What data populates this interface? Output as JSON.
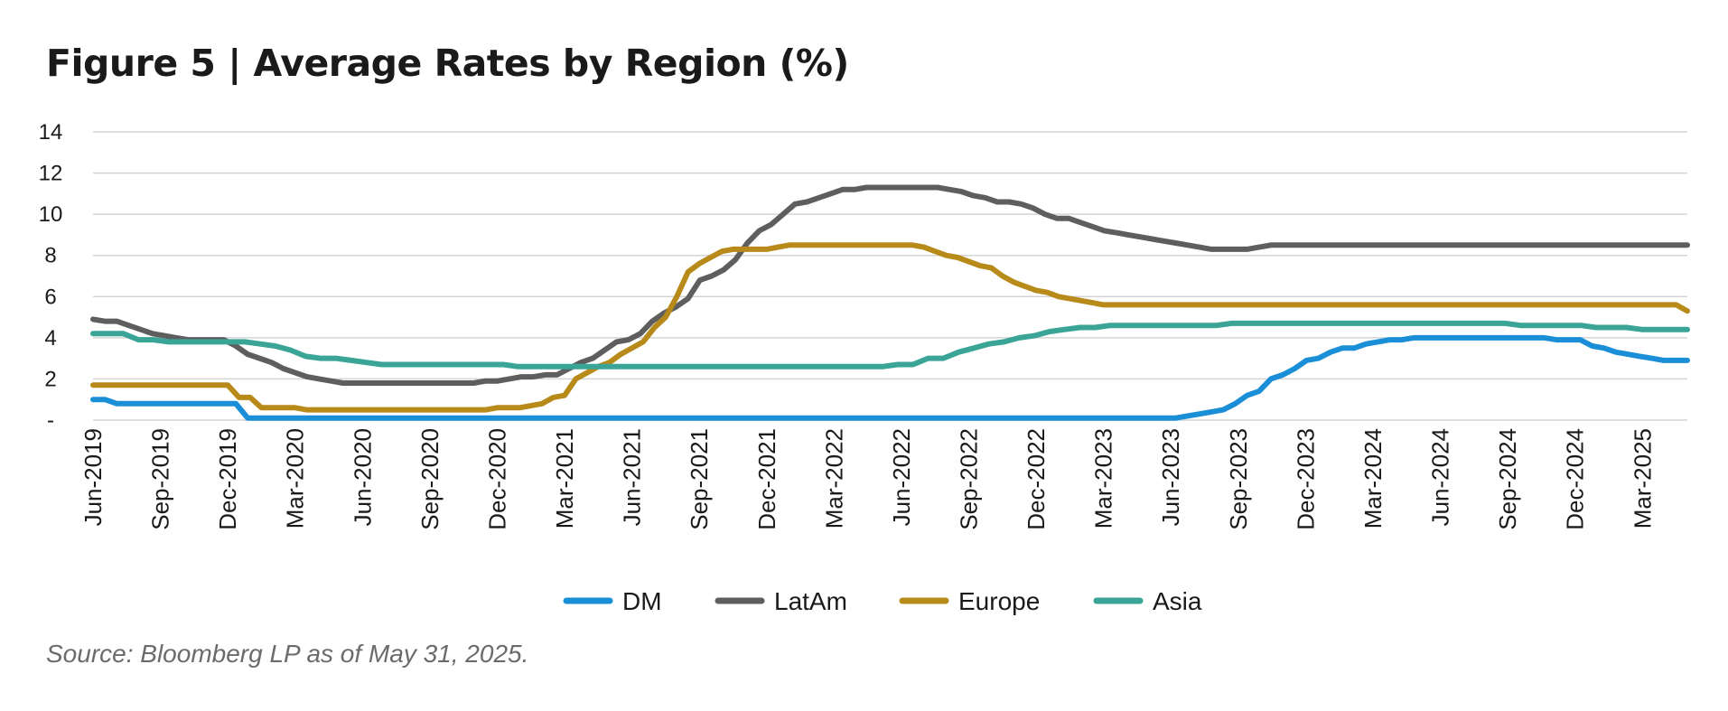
{
  "title": "Figure 5 | Average Rates by Region (%)",
  "source": "Source: Bloomberg LP as of May 31, 2025.",
  "chart_data": {
    "type": "line",
    "title": "Figure 5 | Average Rates by Region (%)",
    "xlabel": "",
    "ylabel": "",
    "ylim": [
      0,
      14
    ],
    "yticks": [
      0,
      2,
      4,
      6,
      8,
      10,
      12,
      14
    ],
    "ytick_labels": [
      "-",
      "2",
      "4",
      "6",
      "8",
      "10",
      "12",
      "14"
    ],
    "x_tick_labels": [
      "Jun-2019",
      "Sep-2019",
      "Dec-2019",
      "Mar-2020",
      "Jun-2020",
      "Sep-2020",
      "Dec-2020",
      "Mar-2021",
      "Jun-2021",
      "Sep-2021",
      "Dec-2021",
      "Mar-2022",
      "Jun-2022",
      "Sep-2022",
      "Dec-2022",
      "Mar-2023",
      "Jun-2023",
      "Sep-2023",
      "Dec-2023",
      "Mar-2024",
      "Jun-2024",
      "Sep-2024",
      "Dec-2024",
      "Mar-2025"
    ],
    "x_start": "Jun-2019",
    "x_end": "May-2025",
    "grid": "horizontal",
    "legend_position": "bottom",
    "series": [
      {
        "name": "DM",
        "color": "#1a8fd8",
        "values": [
          1.0,
          1.0,
          0.8,
          0.8,
          0.8,
          0.8,
          0.8,
          0.8,
          0.8,
          0.8,
          0.8,
          0.8,
          0.8,
          0.1,
          0.1,
          0.1,
          0.1,
          0.1,
          0.1,
          0.1,
          0.1,
          0.1,
          0.1,
          0.1,
          0.1,
          0.1,
          0.1,
          0.1,
          0.1,
          0.1,
          0.1,
          0.1,
          0.1,
          0.1,
          0.1,
          0.1,
          0.1,
          0.1,
          0.1,
          0.1,
          0.1,
          0.1,
          0.1,
          0.1,
          0.1,
          0.1,
          0.1,
          0.1,
          0.1,
          0.1,
          0.1,
          0.1,
          0.1,
          0.1,
          0.1,
          0.1,
          0.1,
          0.1,
          0.1,
          0.1,
          0.1,
          0.1,
          0.1,
          0.1,
          0.1,
          0.1,
          0.1,
          0.1,
          0.1,
          0.1,
          0.1,
          0.1,
          0.1,
          0.1,
          0.1,
          0.1,
          0.1,
          0.1,
          0.1,
          0.1,
          0.1,
          0.1,
          0.1,
          0.1,
          0.1,
          0.1,
          0.1,
          0.1,
          0.1,
          0.1,
          0.1,
          0.1,
          0.2,
          0.3,
          0.4,
          0.5,
          0.8,
          1.2,
          1.4,
          2.0,
          2.2,
          2.5,
          2.9,
          3.0,
          3.3,
          3.5,
          3.5,
          3.7,
          3.8,
          3.9,
          3.9,
          4.0,
          4.0,
          4.0,
          4.0,
          4.0,
          4.0,
          4.0,
          4.0,
          4.0,
          4.0,
          4.0,
          4.0,
          3.9,
          3.9,
          3.9,
          3.6,
          3.5,
          3.3,
          3.2,
          3.1,
          3.0,
          2.9,
          2.9,
          2.9
        ]
      },
      {
        "name": "LatAm",
        "color": "#5e5e5e",
        "values": [
          4.9,
          4.8,
          4.8,
          4.6,
          4.4,
          4.2,
          4.1,
          4.0,
          3.9,
          3.9,
          3.9,
          3.9,
          3.6,
          3.2,
          3.0,
          2.8,
          2.5,
          2.3,
          2.1,
          2.0,
          1.9,
          1.8,
          1.8,
          1.8,
          1.8,
          1.8,
          1.8,
          1.8,
          1.8,
          1.8,
          1.8,
          1.8,
          1.8,
          1.9,
          1.9,
          2.0,
          2.1,
          2.1,
          2.2,
          2.2,
          2.5,
          2.8,
          3.0,
          3.4,
          3.8,
          3.9,
          4.2,
          4.8,
          5.2,
          5.5,
          5.9,
          6.8,
          7.0,
          7.3,
          7.8,
          8.6,
          9.2,
          9.5,
          10.0,
          10.5,
          10.6,
          10.8,
          11.0,
          11.2,
          11.2,
          11.3,
          11.3,
          11.3,
          11.3,
          11.3,
          11.3,
          11.3,
          11.2,
          11.1,
          10.9,
          10.8,
          10.6,
          10.6,
          10.5,
          10.3,
          10.0,
          9.8,
          9.8,
          9.6,
          9.4,
          9.2,
          9.1,
          9.0,
          8.9,
          8.8,
          8.7,
          8.6,
          8.5,
          8.4,
          8.3,
          8.3,
          8.3,
          8.3,
          8.4,
          8.5,
          8.5,
          8.5,
          8.5,
          8.5,
          8.5,
          8.5,
          8.5,
          8.5,
          8.5,
          8.5,
          8.5,
          8.5,
          8.5,
          8.5,
          8.5,
          8.5,
          8.5,
          8.5,
          8.5,
          8.5,
          8.5,
          8.5,
          8.5,
          8.5,
          8.5,
          8.5,
          8.5,
          8.5,
          8.5,
          8.5,
          8.5,
          8.5,
          8.5,
          8.5,
          8.5
        ]
      },
      {
        "name": "Europe",
        "color": "#b88a1a",
        "values": [
          1.7,
          1.7,
          1.7,
          1.7,
          1.7,
          1.7,
          1.7,
          1.7,
          1.7,
          1.7,
          1.7,
          1.7,
          1.7,
          1.1,
          1.1,
          0.6,
          0.6,
          0.6,
          0.6,
          0.5,
          0.5,
          0.5,
          0.5,
          0.5,
          0.5,
          0.5,
          0.5,
          0.5,
          0.5,
          0.5,
          0.5,
          0.5,
          0.5,
          0.5,
          0.5,
          0.5,
          0.6,
          0.6,
          0.6,
          0.7,
          0.8,
          1.1,
          1.2,
          2.0,
          2.3,
          2.6,
          2.8,
          3.2,
          3.5,
          3.8,
          4.5,
          5.0,
          6.0,
          7.2,
          7.6,
          7.9,
          8.2,
          8.3,
          8.3,
          8.3,
          8.3,
          8.4,
          8.5,
          8.5,
          8.5,
          8.5,
          8.5,
          8.5,
          8.5,
          8.5,
          8.5,
          8.5,
          8.5,
          8.5,
          8.4,
          8.2,
          8.0,
          7.9,
          7.7,
          7.5,
          7.4,
          7.0,
          6.7,
          6.5,
          6.3,
          6.2,
          6.0,
          5.9,
          5.8,
          5.7,
          5.6,
          5.6,
          5.6,
          5.6,
          5.6,
          5.6,
          5.6,
          5.6,
          5.6,
          5.6,
          5.6,
          5.6,
          5.6,
          5.6,
          5.6,
          5.6,
          5.6,
          5.6,
          5.6,
          5.6,
          5.6,
          5.6,
          5.6,
          5.6,
          5.6,
          5.6,
          5.6,
          5.6,
          5.6,
          5.6,
          5.6,
          5.6,
          5.6,
          5.6,
          5.6,
          5.6,
          5.6,
          5.6,
          5.6,
          5.6,
          5.6,
          5.6,
          5.6,
          5.6,
          5.6,
          5.6,
          5.6,
          5.6,
          5.6,
          5.6,
          5.6,
          5.6,
          5.3
        ]
      },
      {
        "name": "Asia",
        "color": "#3aa596",
        "values": [
          4.2,
          4.2,
          4.2,
          3.9,
          3.9,
          3.8,
          3.8,
          3.8,
          3.8,
          3.8,
          3.8,
          3.7,
          3.6,
          3.4,
          3.1,
          3.0,
          3.0,
          2.9,
          2.8,
          2.7,
          2.7,
          2.7,
          2.7,
          2.7,
          2.7,
          2.7,
          2.7,
          2.7,
          2.6,
          2.6,
          2.6,
          2.6,
          2.6,
          2.6,
          2.6,
          2.6,
          2.6,
          2.6,
          2.6,
          2.6,
          2.6,
          2.6,
          2.6,
          2.6,
          2.6,
          2.6,
          2.6,
          2.6,
          2.6,
          2.6,
          2.6,
          2.6,
          2.6,
          2.7,
          2.7,
          3.0,
          3.0,
          3.3,
          3.5,
          3.7,
          3.8,
          4.0,
          4.1,
          4.3,
          4.4,
          4.5,
          4.5,
          4.6,
          4.6,
          4.6,
          4.6,
          4.6,
          4.6,
          4.6,
          4.6,
          4.7,
          4.7,
          4.7,
          4.7,
          4.7,
          4.7,
          4.7,
          4.7,
          4.7,
          4.7,
          4.7,
          4.7,
          4.7,
          4.7,
          4.7,
          4.7,
          4.7,
          4.7,
          4.7,
          4.6,
          4.6,
          4.6,
          4.6,
          4.6,
          4.5,
          4.5,
          4.5,
          4.4,
          4.4,
          4.4,
          4.4
        ]
      }
    ]
  }
}
